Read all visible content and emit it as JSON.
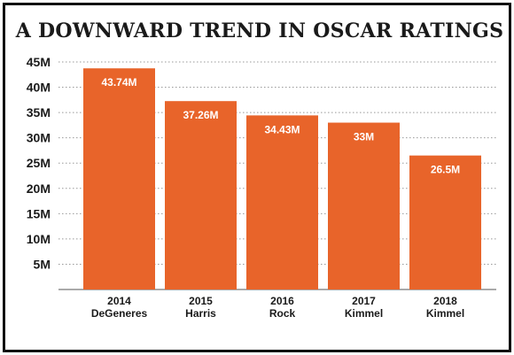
{
  "title": "A DOWNWARD TREND IN OSCAR RATINGS",
  "colors": {
    "bar": "#e8642a",
    "bar_text": "#ffffff",
    "text": "#1a1a1a",
    "grid": "#999999",
    "frame": "#111111"
  },
  "chart_data": {
    "type": "bar",
    "categories": [
      "2014\nDeGeneres",
      "2015\nHarris",
      "2016\nRock",
      "2017\nKimmel",
      "2018\nKimmel"
    ],
    "category_lines": [
      [
        "2014",
        "DeGeneres"
      ],
      [
        "2015",
        "Harris"
      ],
      [
        "2016",
        "Rock"
      ],
      [
        "2017",
        "Kimmel"
      ],
      [
        "2018",
        "Kimmel"
      ]
    ],
    "values": [
      43.74,
      37.26,
      34.43,
      33,
      26.5
    ],
    "data_labels": [
      "43.74M",
      "37.26M",
      "34.43M",
      "33M",
      "26.5M"
    ],
    "title": "A DOWNWARD TREND IN OSCAR RATINGS",
    "xlabel": "",
    "ylabel": "",
    "ylim": [
      0,
      45
    ],
    "yticks": [
      5,
      10,
      15,
      20,
      25,
      30,
      35,
      40,
      45
    ],
    "ytick_labels": [
      "5M",
      "10M",
      "15M",
      "20M",
      "25M",
      "30M",
      "35M",
      "40M",
      "45M"
    ],
    "grid": "dotted horizontal",
    "legend": "none"
  }
}
